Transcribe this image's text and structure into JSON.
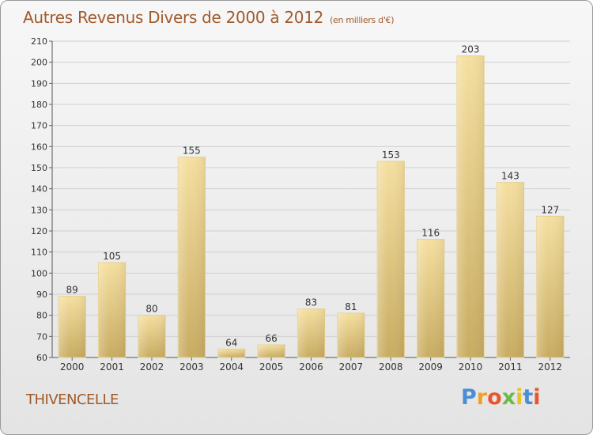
{
  "title": "Autres Revenus Divers de 2000 à 2012",
  "unit_label": "(en milliers d'€)",
  "commune": "THIVENCELLE",
  "logo_text": "Proxiti",
  "colors": {
    "bar_top": "#f5dfa0",
    "bar_bottom": "#c8ac62",
    "title": "#a05a2c",
    "grid": "#d0d0d0"
  },
  "chart_data": {
    "type": "bar",
    "title": "Autres Revenus Divers de 2000 à 2012",
    "xlabel": "",
    "ylabel": "",
    "categories": [
      "2000",
      "2001",
      "2002",
      "2003",
      "2004",
      "2005",
      "2006",
      "2007",
      "2008",
      "2009",
      "2010",
      "2011",
      "2012"
    ],
    "values": [
      89,
      105,
      80,
      155,
      64,
      66,
      83,
      81,
      153,
      116,
      203,
      143,
      127
    ],
    "ylim": [
      60,
      210
    ],
    "yticks": [
      60,
      70,
      80,
      90,
      100,
      110,
      120,
      130,
      140,
      150,
      160,
      170,
      180,
      190,
      200,
      210
    ],
    "grid": true,
    "data_labels": true
  }
}
